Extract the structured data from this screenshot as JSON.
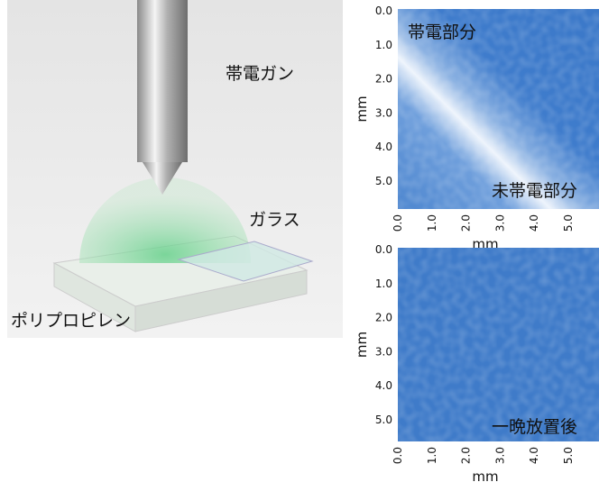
{
  "illustration": {
    "gun_label": "帯電ガン",
    "glass_label": "ガラス",
    "substrate_label": "ポリプロピレン"
  },
  "maps": [
    {
      "annotation": "帯電部分",
      "annotation2": "未帯電部分",
      "xlabel": "mm",
      "ylabel": "mm",
      "xticks": [
        "0.0",
        "1.0",
        "2.0",
        "3.0",
        "4.0",
        "5.0"
      ],
      "yticks": [
        "0.0",
        "1.0",
        "2.0",
        "3.0",
        "4.0",
        "5.0"
      ]
    },
    {
      "annotation": "一晩放置後",
      "xlabel": "mm",
      "ylabel": "mm",
      "xticks": [
        "0.0",
        "1.0",
        "2.0",
        "3.0",
        "4.0",
        "5.0"
      ],
      "yticks": [
        "0.0",
        "1.0",
        "2.0",
        "3.0",
        "4.0",
        "5.0"
      ]
    }
  ]
}
